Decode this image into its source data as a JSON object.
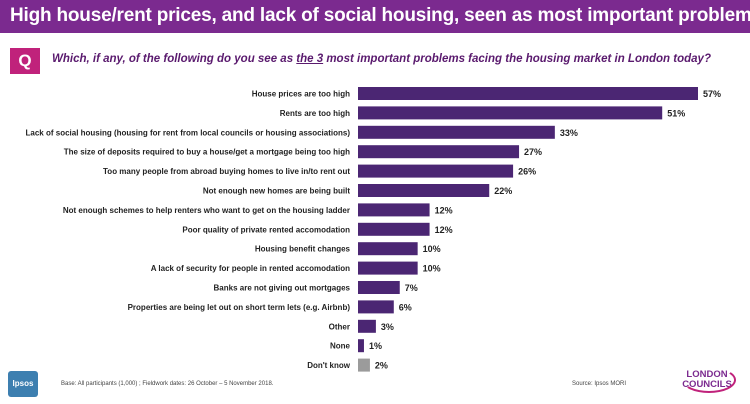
{
  "header": {
    "title": "High house/rent prices, and lack of social housing, seen as most important problems..."
  },
  "question": {
    "badge": "Q",
    "text_before": "Which, if any, of the following do you see as ",
    "text_emph": "the 3",
    "text_after": " most important problems facing the housing market in London today?"
  },
  "chart_data": {
    "type": "bar",
    "orientation": "horizontal",
    "categories": [
      "House prices are too high",
      "Rents are too high",
      "Lack of social housing (housing for rent from local councils or housing associations)",
      "The size of deposits required to buy a house/get a mortgage being too high",
      "Too many people from abroad buying homes to live in/to rent out",
      "Not enough new homes are being built",
      "Not enough schemes to help renters who want to get on the housing ladder",
      "Poor quality of private rented accomodation",
      "Housing benefit changes",
      "A lack of security for people in rented accomodation",
      "Banks are not giving out mortgages",
      "Properties are being let out on short term lets (e.g. Airbnb)",
      "Other",
      "None",
      "Don't know"
    ],
    "values": [
      57,
      51,
      33,
      27,
      26,
      22,
      12,
      12,
      10,
      10,
      7,
      6,
      3,
      1,
      2
    ],
    "value_labels": [
      "57%",
      "51%",
      "33%",
      "27%",
      "26%",
      "22%",
      "12%",
      "12%",
      "10%",
      "10%",
      "7%",
      "6%",
      "3%",
      "1%",
      "2%"
    ],
    "colors": [
      "#4b2673",
      "#4b2673",
      "#4b2673",
      "#4b2673",
      "#4b2673",
      "#4b2673",
      "#4b2673",
      "#4b2673",
      "#4b2673",
      "#4b2673",
      "#4b2673",
      "#4b2673",
      "#4b2673",
      "#4b2673",
      "#9b9b9b"
    ],
    "xlim": [
      0,
      57
    ],
    "grid": false,
    "legend": "none"
  },
  "footer": {
    "base": "Base: All participants (1,000) ; Fieldwork dates: 26 October – 5 November 2018.",
    "source": "Source: Ipsos MORI",
    "ipsos_logo": "Ipsos",
    "lc_logo_line1": "LONDON",
    "lc_logo_line2": "COUNCILS"
  }
}
